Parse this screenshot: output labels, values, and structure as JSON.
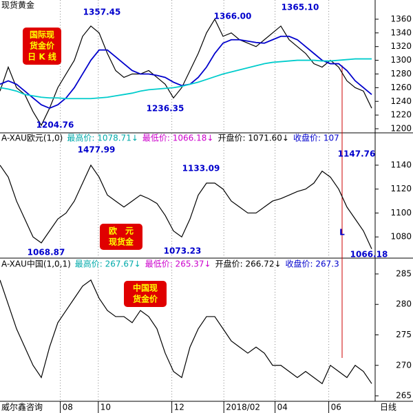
{
  "chart_data": [
    {
      "type": "line",
      "title": "现货黄金",
      "badge": [
        "国际现",
        "货金价",
        "日 K 线"
      ],
      "ylim": [
        1194,
        1378
      ],
      "yticks": [
        1200,
        1220,
        1240,
        1260,
        1280,
        1300,
        1320,
        1340,
        1360
      ],
      "series": [
        {
          "color": "#000000",
          "values": [
            1255,
            1290,
            1260,
            1250,
            1225,
            1205,
            1230,
            1260,
            1280,
            1300,
            1335,
            1350,
            1340,
            1310,
            1285,
            1275,
            1280,
            1280,
            1285,
            1275,
            1265,
            1245,
            1260,
            1285,
            1310,
            1340,
            1360,
            1335,
            1340,
            1330,
            1325,
            1320,
            1330,
            1340,
            1350,
            1330,
            1320,
            1310,
            1295,
            1290,
            1300,
            1290,
            1270,
            1260,
            1255,
            1230
          ]
        },
        {
          "color": "#0000cc",
          "values": [
            1265,
            1270,
            1265,
            1255,
            1245,
            1235,
            1230,
            1235,
            1245,
            1260,
            1280,
            1300,
            1315,
            1315,
            1305,
            1295,
            1285,
            1280,
            1280,
            1278,
            1275,
            1268,
            1263,
            1265,
            1275,
            1290,
            1310,
            1325,
            1330,
            1330,
            1328,
            1326,
            1325,
            1330,
            1335,
            1335,
            1330,
            1320,
            1310,
            1300,
            1295,
            1295,
            1285,
            1270,
            1260,
            1250
          ]
        },
        {
          "color": "#00cccc",
          "values": [
            1260,
            1258,
            1255,
            1250,
            1248,
            1246,
            1245,
            1245,
            1244,
            1244,
            1244,
            1244,
            1245,
            1246,
            1248,
            1250,
            1252,
            1255,
            1257,
            1258,
            1259,
            1260,
            1262,
            1265,
            1268,
            1272,
            1276,
            1280,
            1283,
            1286,
            1289,
            1292,
            1295,
            1297,
            1298,
            1299,
            1300,
            1300,
            1300,
            1299,
            1299,
            1300,
            1301,
            1302,
            1302,
            1302
          ]
        }
      ],
      "annotations": [
        "1357.45",
        "1366.00",
        "1365.10",
        "1236.35",
        "1204.76"
      ]
    },
    {
      "type": "line",
      "header": [
        {
          "text": "A-XAU欧元(1,0)",
          "color": "#000000"
        },
        {
          "text": "最高价: 1078.71↓",
          "color": "#00aaaa"
        },
        {
          "text": "最低价: 1066.18↓",
          "color": "#cc00cc"
        },
        {
          "text": "开盘价: 1071.60↓",
          "color": "#000000"
        },
        {
          "text": "收盘价: 107",
          "color": "#0000cc"
        }
      ],
      "badge": [
        "欧　元",
        "现货金"
      ],
      "ylim": [
        1064,
        1163
      ],
      "yticks": [
        1080,
        1100,
        1120,
        1140
      ],
      "series": [
        {
          "color": "#000000",
          "values": [
            1140,
            1130,
            1110,
            1095,
            1080,
            1075,
            1085,
            1095,
            1100,
            1110,
            1125,
            1140,
            1130,
            1115,
            1110,
            1105,
            1110,
            1115,
            1112,
            1108,
            1098,
            1085,
            1080,
            1095,
            1115,
            1125,
            1125,
            1120,
            1110,
            1105,
            1100,
            1100,
            1105,
            1110,
            1112,
            1115,
            1118,
            1120,
            1125,
            1135,
            1130,
            1120,
            1105,
            1095,
            1085,
            1070
          ]
        }
      ],
      "annotations": [
        "1477.99",
        "1133.09",
        "1068.87",
        "1073.23",
        "1147.76",
        "1066.18",
        "L"
      ]
    },
    {
      "type": "line",
      "header": [
        {
          "text": "A-XAU中国(1,0,1)",
          "color": "#000000"
        },
        {
          "text": "最高价: 267.67↓",
          "color": "#00aaaa"
        },
        {
          "text": "最低价: 265.37↓",
          "color": "#cc00cc"
        },
        {
          "text": "开盘价: 266.72↓",
          "color": "#000000"
        },
        {
          "text": "收盘价: 267.3",
          "color": "#0000cc"
        }
      ],
      "badge": [
        "中国现",
        "货金价"
      ],
      "ylim": [
        264.1,
        285.9
      ],
      "yticks": [
        265,
        270,
        275,
        280,
        285
      ],
      "series": [
        {
          "color": "#000000",
          "values": [
            284,
            280,
            276,
            273,
            270,
            268,
            273,
            277,
            279,
            281,
            283,
            284,
            281,
            279,
            278,
            278,
            277,
            279,
            278,
            276,
            272,
            269,
            268,
            273,
            276,
            278,
            278,
            276,
            274,
            273,
            272,
            273,
            272,
            270,
            270,
            269,
            268,
            269,
            268,
            267,
            270,
            269,
            268,
            270,
            269,
            267
          ]
        }
      ],
      "xlim": [
        0,
        45
      ],
      "xticks": [
        {
          "value": 7.3,
          "label": "08"
        },
        {
          "value": 11.9,
          "label": "10"
        },
        {
          "value": 20.8,
          "label": "12"
        },
        {
          "value": 27.1,
          "label": "2018/02"
        },
        {
          "value": 33.3,
          "label": "04"
        },
        {
          "value": 39.8,
          "label": "06"
        }
      ],
      "source": "威尔鑫咨询",
      "period": "日线"
    }
  ]
}
